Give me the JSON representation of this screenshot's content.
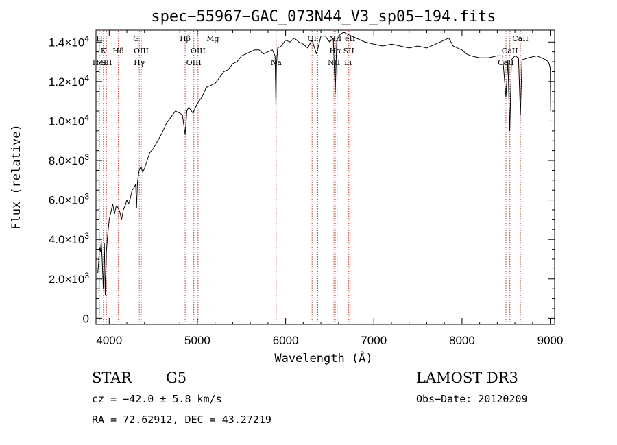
{
  "chart_data": {
    "type": "line",
    "title": "spec−55967−GAC_073N44_V3_sp05−194.fits",
    "xlabel": "Wavelength (Å)",
    "ylabel": "Flux (relative)",
    "xlim": [
      3850,
      9050
    ],
    "ylim": [
      -300,
      14600
    ],
    "x_ticks": [
      {
        "value": 4000,
        "label": "4000"
      },
      {
        "value": 5000,
        "label": "5000"
      },
      {
        "value": 6000,
        "label": "6000"
      },
      {
        "value": 7000,
        "label": "7000"
      },
      {
        "value": 8000,
        "label": "8000"
      },
      {
        "value": 9000,
        "label": "9000"
      }
    ],
    "y_ticks": [
      {
        "value": 0,
        "mant": "0",
        "exp": ""
      },
      {
        "value": 2000,
        "mant": "2.0×10",
        "exp": "3"
      },
      {
        "value": 4000,
        "mant": "4.0×10",
        "exp": "3"
      },
      {
        "value": 6000,
        "mant": "6.0×10",
        "exp": "3"
      },
      {
        "value": 8000,
        "mant": "8.0×10",
        "exp": "3"
      },
      {
        "value": 10000,
        "mant": "1.0×10",
        "exp": "4"
      },
      {
        "value": 12000,
        "mant": "1.2×10",
        "exp": "4"
      },
      {
        "value": 14000,
        "mant": "1.4×10",
        "exp": "4"
      }
    ],
    "grid": false,
    "series": [
      {
        "color": "#000000",
        "x": [
          3870,
          3880,
          3890,
          3900,
          3910,
          3920,
          3933,
          3945,
          3955,
          3968,
          3980,
          4000,
          4020,
          4040,
          4060,
          4080,
          4101,
          4120,
          4140,
          4160,
          4180,
          4200,
          4220,
          4240,
          4260,
          4280,
          4300,
          4310,
          4320,
          4340,
          4360,
          4380,
          4400,
          4430,
          4460,
          4500,
          4550,
          4600,
          4650,
          4700,
          4750,
          4800,
          4830,
          4861,
          4880,
          4900,
          4950,
          5000,
          5050,
          5100,
          5150,
          5200,
          5250,
          5300,
          5350,
          5400,
          5450,
          5500,
          5550,
          5600,
          5650,
          5700,
          5750,
          5800,
          5850,
          5880,
          5890,
          5896,
          5910,
          5950,
          6000,
          6050,
          6100,
          6150,
          6200,
          6250,
          6300,
          6350,
          6400,
          6450,
          6500,
          6540,
          6563,
          6580,
          6620,
          6660,
          6700,
          6750,
          6800,
          6900,
          7000,
          7100,
          7200,
          7300,
          7400,
          7500,
          7600,
          7700,
          7800,
          7850,
          7900,
          7950,
          8000,
          8050,
          8100,
          8200,
          8300,
          8400,
          8460,
          8498,
          8520,
          8542,
          8560,
          8600,
          8640,
          8662,
          8680,
          8750,
          8850,
          8900,
          8950,
          8980,
          9000,
          9005
        ],
        "y": [
          2300,
          2800,
          3600,
          3400,
          3900,
          3000,
          1500,
          3800,
          1200,
          3400,
          4100,
          5000,
          5400,
          5800,
          5300,
          5700,
          5600,
          5400,
          5000,
          5500,
          5700,
          6000,
          5800,
          6100,
          6500,
          6600,
          6800,
          5600,
          6900,
          7500,
          7700,
          7400,
          7600,
          8000,
          8400,
          8600,
          9000,
          9400,
          9900,
          10200,
          10500,
          10400,
          10300,
          9300,
          10500,
          10700,
          10400,
          10900,
          11200,
          11700,
          11800,
          11900,
          12200,
          12500,
          12600,
          12900,
          13000,
          13300,
          13400,
          13500,
          13600,
          13600,
          13400,
          13500,
          13600,
          13300,
          10700,
          12800,
          13700,
          13800,
          14100,
          14000,
          14200,
          14000,
          13900,
          13700,
          14100,
          13400,
          14300,
          14300,
          14000,
          14200,
          11400,
          14100,
          14400,
          14500,
          14400,
          14300,
          14200,
          14000,
          13900,
          13800,
          13900,
          13800,
          13700,
          13800,
          13700,
          13900,
          14100,
          14200,
          13800,
          13700,
          13600,
          13400,
          13300,
          13200,
          13200,
          13300,
          13300,
          11200,
          13100,
          9500,
          13100,
          13300,
          13200,
          10300,
          13100,
          13200,
          13300,
          13200,
          13100,
          13000,
          12700,
          10500
        ]
      }
    ],
    "line_markers": [
      {
        "wave": 3889,
        "labels": [
          "H",
          "",
          "HeI"
        ]
      },
      {
        "wave": 3934,
        "labels": [
          "",
          "K",
          ""
        ]
      },
      {
        "wave": 3969,
        "labels": [
          "",
          "",
          "SII"
        ]
      },
      {
        "wave": 4102,
        "labels": [
          "",
          "Hδ",
          ""
        ]
      },
      {
        "wave": 4305,
        "labels": [
          "G",
          "",
          ""
        ]
      },
      {
        "wave": 4341,
        "labels": [
          "",
          "",
          "Hγ"
        ]
      },
      {
        "wave": 4363,
        "labels": [
          "",
          "OIII",
          ""
        ]
      },
      {
        "wave": 4861,
        "labels": [
          "Hβ",
          "",
          ""
        ]
      },
      {
        "wave": 4959,
        "labels": [
          "",
          "",
          "OIII"
        ]
      },
      {
        "wave": 5007,
        "labels": [
          "",
          "OIII",
          ""
        ]
      },
      {
        "wave": 5175,
        "labels": [
          "Mg",
          "",
          ""
        ]
      },
      {
        "wave": 5893,
        "labels": [
          "",
          "",
          "Na"
        ]
      },
      {
        "wave": 6300,
        "labels": [
          "OI",
          "",
          ""
        ]
      },
      {
        "wave": 6364,
        "labels": [
          "",
          "",
          ""
        ]
      },
      {
        "wave": 6548,
        "labels": [
          "",
          "",
          "NII"
        ]
      },
      {
        "wave": 6563,
        "labels": [
          "NII",
          "Hα",
          ""
        ]
      },
      {
        "wave": 6584,
        "labels": [
          "",
          "",
          ""
        ]
      },
      {
        "wave": 6707,
        "labels": [
          "",
          "",
          "Li"
        ]
      },
      {
        "wave": 6716,
        "labels": [
          "",
          "SII",
          ""
        ]
      },
      {
        "wave": 6731,
        "labels": [
          "éII",
          "",
          ""
        ]
      },
      {
        "wave": 8498,
        "labels": [
          "",
          "",
          "CaII"
        ]
      },
      {
        "wave": 8542,
        "labels": [
          "",
          "CaII",
          ""
        ]
      },
      {
        "wave": 8662,
        "labels": [
          "CaII",
          "",
          ""
        ]
      }
    ]
  },
  "info": {
    "object_class": "STAR",
    "subclass": "G5",
    "survey": "LAMOST DR3",
    "redshift_line": "cz = −42.0 ± 5.8 km/s",
    "obs_date_line": "Obs−Date: 20120209",
    "coords_line": "RA =  72.62912, DEC =  43.27219"
  }
}
